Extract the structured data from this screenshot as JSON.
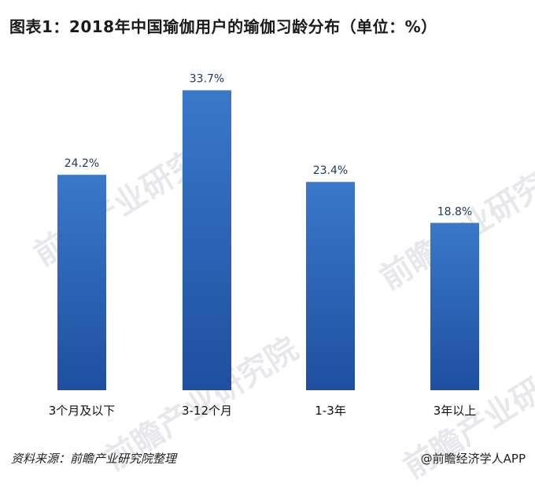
{
  "title": "图表1：2018年中国瑜伽用户的瑜伽习龄分布（单位：%）",
  "chart_data": {
    "type": "bar",
    "categories": [
      "3个月及以下",
      "3-12个月",
      "1-3年",
      "3年以上"
    ],
    "values": [
      24.2,
      33.7,
      23.4,
      18.8
    ],
    "value_labels": [
      "24.2%",
      "33.7%",
      "23.4%",
      "18.8%"
    ],
    "title": "图表1：2018年中国瑜伽用户的瑜伽习龄分布（单位：%）",
    "xlabel": "",
    "ylabel": "",
    "ylim": [
      0,
      35
    ],
    "grid": false,
    "colors": {
      "bar_top": "#3a78c9",
      "bar_bottom": "#1f4fa0"
    }
  },
  "watermark": {
    "text": "前瞻产业研究院"
  },
  "footer": {
    "source": "资料来源：前瞻产业研究院整理",
    "credit": "@前瞻经济学人APP"
  }
}
